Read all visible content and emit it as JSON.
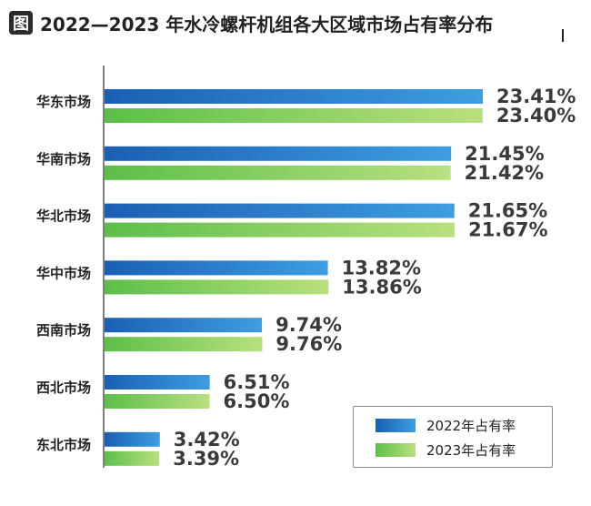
{
  "title_icon_glyph": "图",
  "title": "2022—2023 年水冷螺杆机组各大区域市场占有率分布",
  "chart_data": {
    "type": "bar",
    "orientation": "horizontal",
    "title": "2022—2023 年水冷螺杆机组各大区域市场占有率分布",
    "categories": [
      "华东市场",
      "华南市场",
      "华北市场",
      "华中市场",
      "西南市场",
      "西北市场",
      "东北市场"
    ],
    "series": [
      {
        "name": "2022年占有率",
        "values": [
          23.41,
          21.45,
          21.65,
          13.82,
          9.74,
          6.51,
          3.42
        ],
        "labels": [
          "23.41%",
          "21.45%",
          "21.65%",
          "13.82%",
          "9.74%",
          "6.51%",
          "3.42%"
        ],
        "color_start": "#1a5fb4",
        "color_end": "#3e9ee0"
      },
      {
        "name": "2023年占有率",
        "values": [
          23.4,
          21.42,
          21.67,
          13.86,
          9.76,
          6.5,
          3.39
        ],
        "labels": [
          "23.40%",
          "21.42%",
          "21.67%",
          "13.86%",
          "9.76%",
          "6.50%",
          "3.39%"
        ],
        "color_start": "#5cbf4a",
        "color_end": "#b9e07e"
      }
    ],
    "xlim": [
      0,
      26
    ],
    "grid": false,
    "legend_position": "bottom-right"
  }
}
